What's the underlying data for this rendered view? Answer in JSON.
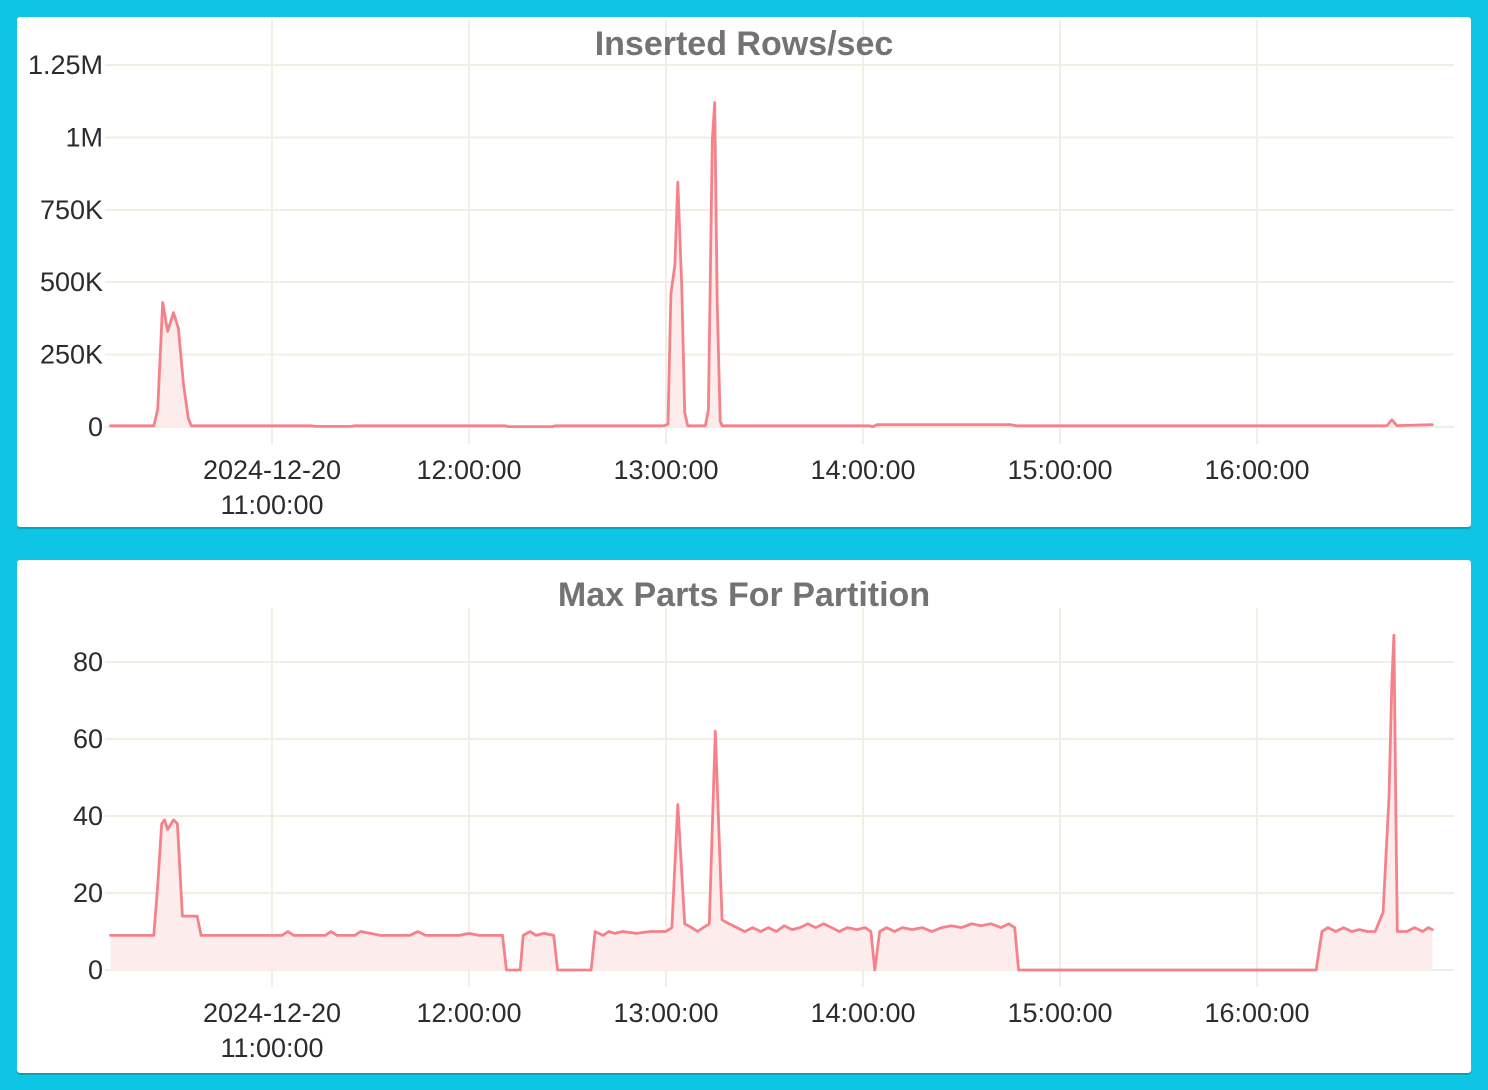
{
  "page": {
    "background_color": "#0cc6e4",
    "card_color": "#ffffff"
  },
  "style": {
    "line_color": "#f5828a",
    "fill_color": "#fdecec",
    "grid_color": "#f1efe3",
    "axis_text_color": "#2b2b30",
    "title_color": "#737373"
  },
  "chart_data": [
    {
      "type": "area",
      "title": "Inserted Rows/sec",
      "xlabel": "",
      "ylabel": "",
      "grid": true,
      "legend": false,
      "x_unit": "hours on 2024-12-20",
      "xlim": [
        10.15,
        16.95
      ],
      "ylim": [
        0,
        1250000
      ],
      "y_ticks": [
        {
          "value": 0,
          "label": "0"
        },
        {
          "value": 250000,
          "label": "250K"
        },
        {
          "value": 500000,
          "label": "500K"
        },
        {
          "value": 750000,
          "label": "750K"
        },
        {
          "value": 1000000,
          "label": "1M"
        },
        {
          "value": 1250000,
          "label": "1.25M"
        }
      ],
      "x_ticks": [
        {
          "hour": 11,
          "lines": [
            "2024-12-20",
            "11:00:00"
          ]
        },
        {
          "hour": 12,
          "lines": [
            "12:00:00"
          ]
        },
        {
          "hour": 13,
          "lines": [
            "13:00:00"
          ]
        },
        {
          "hour": 14,
          "lines": [
            "14:00:00"
          ]
        },
        {
          "hour": 15,
          "lines": [
            "15:00:00"
          ]
        },
        {
          "hour": 16,
          "lines": [
            "16:00:00"
          ]
        }
      ],
      "points": [
        [
          10.18,
          4000
        ],
        [
          10.4,
          4000
        ],
        [
          10.42,
          60000
        ],
        [
          10.445,
          430000
        ],
        [
          10.47,
          330000
        ],
        [
          10.5,
          395000
        ],
        [
          10.525,
          340000
        ],
        [
          10.55,
          150000
        ],
        [
          10.575,
          30000
        ],
        [
          10.59,
          4000
        ],
        [
          11.2,
          4000
        ],
        [
          11.22,
          2000
        ],
        [
          11.4,
          2000
        ],
        [
          11.42,
          4000
        ],
        [
          12.18,
          4000
        ],
        [
          12.2,
          1500
        ],
        [
          12.42,
          1500
        ],
        [
          12.44,
          4000
        ],
        [
          12.99,
          4000
        ],
        [
          13.01,
          10000
        ],
        [
          13.025,
          460000
        ],
        [
          13.045,
          560000
        ],
        [
          13.06,
          845000
        ],
        [
          13.08,
          480000
        ],
        [
          13.095,
          50000
        ],
        [
          13.11,
          4000
        ],
        [
          13.2,
          4000
        ],
        [
          13.215,
          60000
        ],
        [
          13.235,
          990000
        ],
        [
          13.247,
          1120000
        ],
        [
          13.26,
          430000
        ],
        [
          13.275,
          20000
        ],
        [
          13.285,
          4000
        ],
        [
          14.03,
          4000
        ],
        [
          14.05,
          1500
        ],
        [
          14.07,
          8000
        ],
        [
          14.75,
          8000
        ],
        [
          14.78,
          4000
        ],
        [
          16.6,
          4000
        ],
        [
          16.66,
          5000
        ],
        [
          16.685,
          25000
        ],
        [
          16.71,
          5000
        ],
        [
          16.89,
          8000
        ]
      ]
    },
    {
      "type": "area",
      "title": "Max Parts For Partition",
      "xlabel": "",
      "ylabel": "",
      "grid": true,
      "legend": false,
      "x_unit": "hours on 2024-12-20",
      "xlim": [
        10.15,
        16.95
      ],
      "ylim": [
        0,
        80
      ],
      "y_ticks": [
        {
          "value": 0,
          "label": "0"
        },
        {
          "value": 20,
          "label": "20"
        },
        {
          "value": 40,
          "label": "40"
        },
        {
          "value": 60,
          "label": "60"
        },
        {
          "value": 80,
          "label": "80"
        }
      ],
      "x_ticks": [
        {
          "hour": 11,
          "lines": [
            "2024-12-20",
            "11:00:00"
          ]
        },
        {
          "hour": 12,
          "lines": [
            "12:00:00"
          ]
        },
        {
          "hour": 13,
          "lines": [
            "13:00:00"
          ]
        },
        {
          "hour": 14,
          "lines": [
            "14:00:00"
          ]
        },
        {
          "hour": 15,
          "lines": [
            "15:00:00"
          ]
        },
        {
          "hour": 16,
          "lines": [
            "16:00:00"
          ]
        }
      ],
      "points": [
        [
          10.18,
          9
        ],
        [
          10.4,
          9
        ],
        [
          10.42,
          22
        ],
        [
          10.44,
          38
        ],
        [
          10.455,
          39
        ],
        [
          10.47,
          36.5
        ],
        [
          10.5,
          39
        ],
        [
          10.52,
          38
        ],
        [
          10.545,
          14
        ],
        [
          10.62,
          14
        ],
        [
          10.64,
          9
        ],
        [
          10.9,
          9
        ],
        [
          11.05,
          9
        ],
        [
          11.08,
          10
        ],
        [
          11.11,
          9
        ],
        [
          11.27,
          9
        ],
        [
          11.3,
          10
        ],
        [
          11.33,
          9
        ],
        [
          11.42,
          9
        ],
        [
          11.45,
          10
        ],
        [
          11.5,
          9.5
        ],
        [
          11.55,
          9
        ],
        [
          11.7,
          9
        ],
        [
          11.74,
          10
        ],
        [
          11.78,
          9
        ],
        [
          11.95,
          9
        ],
        [
          12.0,
          9.5
        ],
        [
          12.05,
          9
        ],
        [
          12.17,
          9
        ],
        [
          12.19,
          0
        ],
        [
          12.26,
          0
        ],
        [
          12.275,
          9
        ],
        [
          12.31,
          10
        ],
        [
          12.34,
          9
        ],
        [
          12.38,
          9.5
        ],
        [
          12.43,
          9
        ],
        [
          12.45,
          0
        ],
        [
          12.62,
          0
        ],
        [
          12.64,
          10
        ],
        [
          12.68,
          9
        ],
        [
          12.71,
          10
        ],
        [
          12.74,
          9.5
        ],
        [
          12.78,
          10
        ],
        [
          12.85,
          9.5
        ],
        [
          12.92,
          10
        ],
        [
          13.0,
          10
        ],
        [
          13.03,
          11
        ],
        [
          13.06,
          43
        ],
        [
          13.095,
          12
        ],
        [
          13.13,
          11
        ],
        [
          13.16,
          10
        ],
        [
          13.19,
          11
        ],
        [
          13.22,
          12
        ],
        [
          13.25,
          62
        ],
        [
          13.285,
          13
        ],
        [
          13.32,
          12
        ],
        [
          13.36,
          11
        ],
        [
          13.4,
          10
        ],
        [
          13.44,
          11
        ],
        [
          13.48,
          10
        ],
        [
          13.52,
          11
        ],
        [
          13.56,
          10
        ],
        [
          13.6,
          11.5
        ],
        [
          13.64,
          10.5
        ],
        [
          13.68,
          11
        ],
        [
          13.72,
          12
        ],
        [
          13.76,
          11
        ],
        [
          13.8,
          12
        ],
        [
          13.84,
          11
        ],
        [
          13.88,
          10
        ],
        [
          13.92,
          11
        ],
        [
          13.97,
          10.5
        ],
        [
          14.01,
          11
        ],
        [
          14.04,
          10
        ],
        [
          14.06,
          0
        ],
        [
          14.085,
          10
        ],
        [
          14.12,
          11
        ],
        [
          14.16,
          10
        ],
        [
          14.2,
          11
        ],
        [
          14.25,
          10.5
        ],
        [
          14.3,
          11
        ],
        [
          14.35,
          10
        ],
        [
          14.4,
          11
        ],
        [
          14.45,
          11.5
        ],
        [
          14.5,
          11
        ],
        [
          14.55,
          12
        ],
        [
          14.6,
          11.5
        ],
        [
          14.65,
          12
        ],
        [
          14.7,
          11
        ],
        [
          14.74,
          12
        ],
        [
          14.77,
          11
        ],
        [
          14.79,
          0
        ],
        [
          16.3,
          0
        ],
        [
          16.33,
          10
        ],
        [
          16.36,
          11
        ],
        [
          16.4,
          10
        ],
        [
          16.44,
          11
        ],
        [
          16.48,
          10
        ],
        [
          16.52,
          10.5
        ],
        [
          16.56,
          10
        ],
        [
          16.6,
          10
        ],
        [
          16.64,
          15
        ],
        [
          16.67,
          45
        ],
        [
          16.685,
          75
        ],
        [
          16.695,
          87
        ],
        [
          16.705,
          40
        ],
        [
          16.712,
          10
        ],
        [
          16.76,
          10
        ],
        [
          16.8,
          11
        ],
        [
          16.84,
          10
        ],
        [
          16.87,
          11
        ],
        [
          16.89,
          10.5
        ]
      ]
    }
  ]
}
